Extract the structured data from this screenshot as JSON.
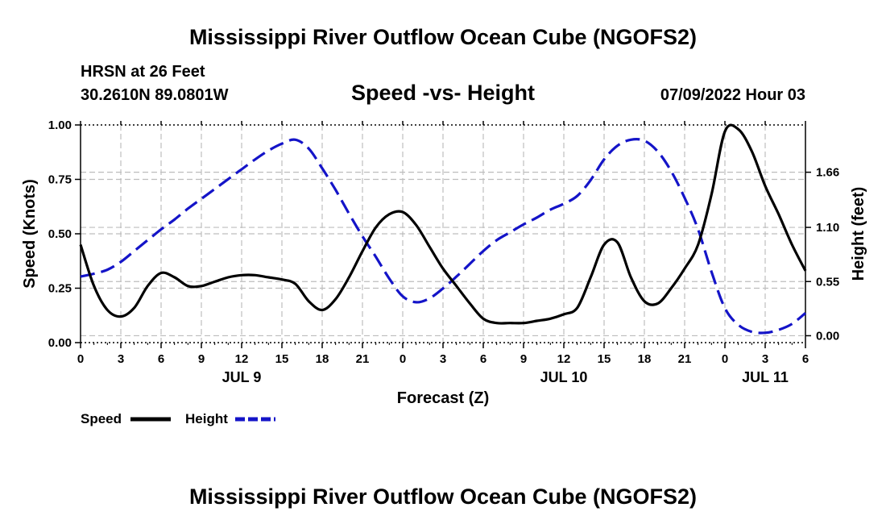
{
  "chart_data": {
    "type": "line",
    "title": "Mississippi River Outflow Ocean Cube (NGOFS2)",
    "subtitle": "Speed -vs- Height",
    "station": "HRSN at 26 Feet",
    "location": "30.2610N  89.0801W",
    "datetime": "07/09/2022 Hour 03",
    "footer_title": "Mississippi River Outflow Ocean Cube (NGOFS2)",
    "xlabel": "Forecast (Z)",
    "ylabel_left": "Speed (Knots)",
    "ylabel_right": "Height (feet)",
    "x_ticks": [
      "0",
      "3",
      "6",
      "9",
      "12",
      "15",
      "18",
      "21",
      "0",
      "3",
      "6",
      "9",
      "12",
      "15",
      "18",
      "21",
      "0",
      "3",
      "6"
    ],
    "x_tick_hours": [
      0,
      3,
      6,
      9,
      12,
      15,
      18,
      21,
      24,
      27,
      30,
      33,
      36,
      39,
      42,
      45,
      48,
      51,
      54
    ],
    "day_labels": [
      {
        "label": "JUL 9",
        "hour": 12
      },
      {
        "label": "JUL 10",
        "hour": 36
      },
      {
        "label": "JUL 11",
        "hour": 51
      }
    ],
    "y_left_ticks": [
      "0.00",
      "0.25",
      "0.50",
      "0.75",
      "1.00"
    ],
    "y_left_values": [
      0,
      0.25,
      0.5,
      0.75,
      1.0
    ],
    "ylim_left": [
      0,
      1.0
    ],
    "y_right_ticks": [
      "0.00",
      "0.55",
      "1.10",
      "1.66"
    ],
    "y_right_values": [
      0,
      0.55,
      1.1,
      1.66
    ],
    "ylim_right": [
      -0.07,
      2.14
    ],
    "xlim": [
      0,
      54
    ],
    "series": [
      {
        "name": "Speed",
        "color": "#000000",
        "style": "solid",
        "axis": "left",
        "x": [
          0,
          1,
          2,
          3,
          4,
          5,
          6,
          7,
          8,
          9,
          10,
          11,
          12,
          13,
          14,
          15,
          16,
          17,
          18,
          19,
          20,
          21,
          22,
          23,
          24,
          25,
          26,
          27,
          28,
          29,
          30,
          31,
          32,
          33,
          34,
          35,
          36,
          37,
          38,
          39,
          40,
          41,
          42,
          43,
          44,
          45,
          46,
          47,
          48,
          49,
          50,
          51,
          52,
          53,
          54
        ],
        "y": [
          0.45,
          0.26,
          0.15,
          0.12,
          0.16,
          0.26,
          0.32,
          0.3,
          0.26,
          0.26,
          0.28,
          0.3,
          0.31,
          0.31,
          0.3,
          0.29,
          0.27,
          0.19,
          0.15,
          0.2,
          0.3,
          0.42,
          0.53,
          0.59,
          0.6,
          0.54,
          0.44,
          0.34,
          0.26,
          0.18,
          0.11,
          0.09,
          0.09,
          0.09,
          0.1,
          0.11,
          0.13,
          0.16,
          0.3,
          0.45,
          0.46,
          0.3,
          0.19,
          0.18,
          0.25,
          0.34,
          0.45,
          0.68,
          0.97,
          0.98,
          0.88,
          0.72,
          0.59,
          0.45,
          0.33
        ]
      },
      {
        "name": "Height",
        "color": "#1414c8",
        "style": "dashed",
        "axis": "right",
        "x": [
          0,
          1,
          2,
          3,
          4,
          5,
          6,
          7,
          8,
          9,
          10,
          11,
          12,
          13,
          14,
          15,
          16,
          17,
          18,
          19,
          20,
          21,
          22,
          23,
          24,
          25,
          26,
          27,
          28,
          29,
          30,
          31,
          32,
          33,
          34,
          35,
          36,
          37,
          38,
          39,
          40,
          41,
          42,
          43,
          44,
          45,
          46,
          47,
          48,
          49,
          50,
          51,
          52,
          53,
          54
        ],
        "y": [
          0.6,
          0.63,
          0.67,
          0.75,
          0.86,
          0.97,
          1.08,
          1.18,
          1.29,
          1.39,
          1.49,
          1.59,
          1.69,
          1.79,
          1.88,
          1.95,
          1.99,
          1.9,
          1.7,
          1.48,
          1.24,
          1.01,
          0.8,
          0.58,
          0.4,
          0.34,
          0.38,
          0.48,
          0.6,
          0.73,
          0.86,
          0.97,
          1.05,
          1.13,
          1.2,
          1.28,
          1.34,
          1.42,
          1.58,
          1.79,
          1.93,
          1.99,
          1.98,
          1.87,
          1.67,
          1.4,
          1.08,
          0.65,
          0.28,
          0.11,
          0.04,
          0.03,
          0.06,
          0.12,
          0.23
        ]
      }
    ],
    "legend": [
      {
        "label": "Speed",
        "color": "#000000",
        "style": "solid"
      },
      {
        "label": "Height",
        "color": "#1414c8",
        "style": "dashed"
      }
    ]
  }
}
